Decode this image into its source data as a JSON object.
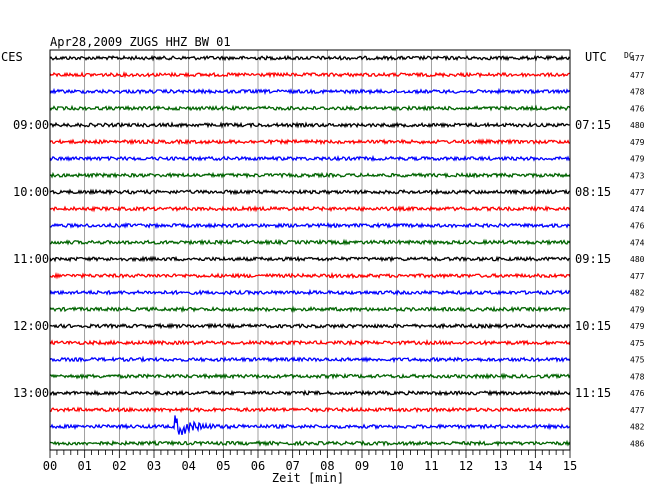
{
  "chart_data": {
    "type": "line",
    "title": "Apr28,2009  ZUGS HHZ BW 01",
    "left_axis_unit": "CES",
    "right_axis_unit": "UTC",
    "dc_label": "DC",
    "xlabel": "Zeit [min]",
    "x_ticks": [
      "00",
      "01",
      "02",
      "03",
      "04",
      "05",
      "06",
      "07",
      "08",
      "09",
      "10",
      "11",
      "12",
      "13",
      "14",
      "15"
    ],
    "xlim": [
      0,
      15
    ],
    "grid": "vertical, every 1 min",
    "rows_count": 24,
    "trace_colors": [
      "#000000",
      "#ff0000",
      "#0000ff",
      "#006400"
    ],
    "left_time_labels": [
      {
        "row": 4,
        "text": "09:00"
      },
      {
        "row": 8,
        "text": "10:00"
      },
      {
        "row": 12,
        "text": "11:00"
      },
      {
        "row": 16,
        "text": "12:00"
      },
      {
        "row": 20,
        "text": "13:00"
      }
    ],
    "right_time_labels": [
      {
        "row": 4,
        "text": "07:15"
      },
      {
        "row": 8,
        "text": "08:15"
      },
      {
        "row": 12,
        "text": "09:15"
      },
      {
        "row": 16,
        "text": "10:15"
      },
      {
        "row": 20,
        "text": "11:15"
      }
    ],
    "dc_values": [
      "477",
      "477",
      "478",
      "476",
      "480",
      "479",
      "479",
      "473",
      "477",
      "474",
      "476",
      "474",
      "480",
      "477",
      "482",
      "479",
      "479",
      "475",
      "475",
      "478",
      "476",
      "477",
      "482",
      "486"
    ],
    "events": [
      {
        "row": 22,
        "start_min": 3.6,
        "amplitude": 3.5,
        "decay_min": 0.9,
        "color": "blue"
      }
    ]
  }
}
